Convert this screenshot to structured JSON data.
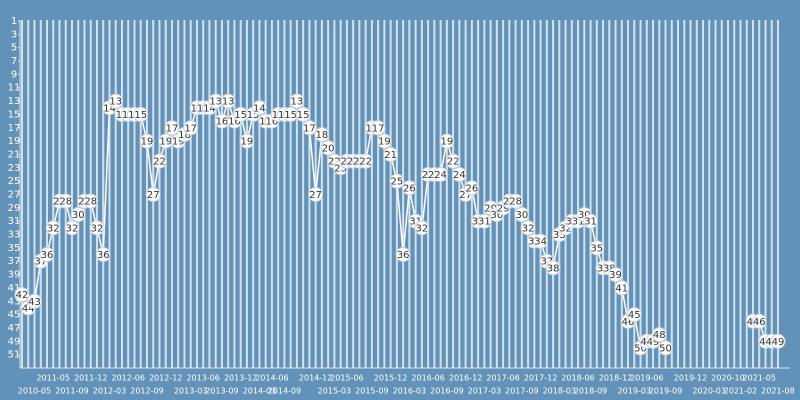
{
  "chart_data": {
    "type": "line",
    "categories": [
      null,
      null,
      "2010-05",
      null,
      null,
      "2011-05",
      null,
      null,
      "2011-09",
      null,
      null,
      "2011-12",
      null,
      null,
      "2012-03",
      null,
      null,
      "2012-06",
      null,
      null,
      "2012-09",
      null,
      null,
      "2012-12",
      null,
      null,
      null,
      "2013-03",
      null,
      "2013-06",
      null,
      null,
      "2013-09",
      null,
      null,
      "2013-12",
      null,
      null,
      "2014-03",
      null,
      "2014-06",
      null,
      "2014-09",
      null,
      null,
      null,
      null,
      "2014-12",
      null,
      null,
      "2015-03",
      null,
      "2015-06",
      null,
      null,
      null,
      "2015-09",
      null,
      null,
      "2015-12",
      null,
      null,
      "2016-03",
      null,
      null,
      "2016-06",
      null,
      null,
      "2016-09",
      null,
      null,
      "2016-12",
      null,
      null,
      "2017-03",
      null,
      null,
      "2017-06",
      null,
      null,
      "2017-09",
      null,
      null,
      "2017-12",
      null,
      null,
      "2018-03",
      null,
      null,
      "2018-06",
      null,
      "2018-09",
      null,
      null,
      null,
      "2018-12",
      null,
      null,
      "2019-03",
      null,
      "2019-06",
      null,
      null,
      "2019-09",
      null,
      null,
      null,
      "2019-12",
      null,
      null,
      "2020-03",
      null,
      null,
      "2020-10",
      null,
      "2021-02",
      null,
      null,
      "2021-05",
      null,
      null,
      "2021-08"
    ],
    "values": [
      42,
      44,
      43,
      37,
      36,
      32,
      28,
      28,
      32,
      30,
      28,
      28,
      32,
      36,
      14,
      13,
      15,
      15,
      15,
      15,
      19,
      27,
      22,
      19,
      17,
      19,
      18,
      17,
      14,
      14,
      14,
      13,
      16,
      13,
      16,
      15,
      19,
      15,
      14,
      16,
      16,
      15,
      15,
      15,
      13,
      15,
      17,
      27,
      18,
      20,
      22,
      23,
      22,
      22,
      22,
      22,
      17,
      17,
      19,
      21,
      25,
      36,
      26,
      31,
      32,
      24,
      24,
      24,
      19,
      22,
      24,
      27,
      26,
      31,
      31,
      29,
      30,
      29,
      28,
      28,
      30,
      32,
      34,
      34,
      37,
      38,
      33,
      32,
      31,
      31,
      30,
      31,
      35,
      38,
      38,
      39,
      41,
      46,
      45,
      50,
      49,
      49,
      48,
      50,
      null,
      null,
      null,
      null,
      null,
      null,
      null,
      null,
      null,
      null,
      null,
      null,
      null,
      46,
      46,
      49,
      49,
      49
    ],
    "color": "#ffffff",
    "ylim": [
      1,
      53
    ],
    "y_inverted": true,
    "yticks": [
      1,
      3,
      5,
      7,
      9,
      11,
      13,
      15,
      17,
      19,
      21,
      23,
      25,
      27,
      29,
      31,
      33,
      35,
      37,
      39,
      41,
      43,
      45,
      47,
      49,
      51
    ]
  }
}
